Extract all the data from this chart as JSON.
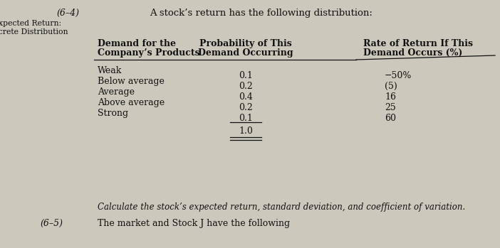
{
  "background_color": "#ccc9bc",
  "top_label": "(6–4)",
  "side_label_line1": "Expected Return:",
  "side_label_line2": "Discrete Distribution",
  "intro_text": "A stock’s return has the following distribution:",
  "col1_header_line1": "Demand for the",
  "col1_header_line2": "Company’s Products",
  "col2_header_line1": "Probability of This",
  "col2_header_line2": "Demand Occurring",
  "col3_header_line1": "Rate of Return If This",
  "col3_header_line2": "Demand Occurs (%)",
  "demands": [
    "Weak",
    "Below average",
    "Average",
    "Above average",
    "Strong"
  ],
  "probabilities": [
    "0.1",
    "0.2",
    "0.4",
    "0.2",
    "0.1"
  ],
  "returns": [
    "−50%",
    "(5)",
    "16",
    "25",
    "60"
  ],
  "total_prob": "1.0",
  "bottom_text": "Calculate the stock’s expected return, standard deviation, and coefficient of variation.",
  "bottom_label": "(6–5)",
  "bottom_text2": "The market and Stock J have the following",
  "font_color": "#111111",
  "font_size_main": 9.0,
  "font_size_small": 7.8,
  "font_size_header": 9.0
}
